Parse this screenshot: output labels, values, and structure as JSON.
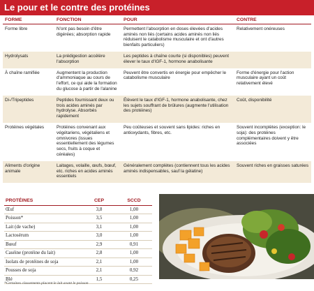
{
  "title": "Le pour et le contre des protéines",
  "table": {
    "headers": [
      "FORME",
      "FONCTION",
      "POUR",
      "CONTRE"
    ],
    "rows": [
      [
        "Forme libre",
        "N'ont pas besoin d'être digérées; absorption rapide",
        "Permettent l'absorption en doses élevées d'acides aminés non liés (certains acides aminés non liés réduisent le catabolisme musculaire et ont d'autres bienfaits particuliers)",
        "Relativement onéreuses"
      ],
      [
        "Hydrolysats",
        "La prédigestion accélère l'absorption",
        "Les peptides à chaîne courte (si disponibles) peuvent élever le taux d'IGF-1, hormone anabolisante",
        null
      ],
      [
        "À chaîne ramifiée",
        "Augmentent la production d'ammoniaque au cours de l'effort, ce qui aide la formation du glucose à partir de l'alanine",
        "Peuvent être convertis en énergie pour empêcher le catabolisme musculaire",
        "Forme d'énergie pour l'action musculaire ayant un coût relativement élevé"
      ],
      [
        "Di-/Tripeptides",
        "Peptides fournissant deux ou trois acides aminés par hydrolyse. Absorbés rapidement",
        "Élèvent le taux d'IGF-1, hormone anabolisante, chez les sujets souffrant de brûlures (augmente l'utilisation des protéines)",
        "Coût, disponibilité"
      ],
      [
        "Protéines végétales",
        "Protéines convenant aux végétariens, végétaliens et omnivores (issues essentiellement des légumes secs, fruits à coque et céréales)",
        "Peu coûteuses et souvent sans lipides: riches en antioxydants, fibres, etc.",
        "Souvent incomplètes (exception: le soja): des protéines complémentaires doivent y être associées"
      ],
      [
        "Aliments d'origine animale",
        "Laitages, volaille, œufs, bœuf, etc. riches en acides aminés essentiels",
        "Généralement complètes (contiennent tous les acides aminés indispensables, sauf la gélatine)",
        "Souvent riches en graisses saturées"
      ]
    ]
  },
  "scores": {
    "headers": [
      "PROTÉINES",
      "CEP",
      "SCCD"
    ],
    "rows": [
      [
        "Œuf",
        "3,8",
        "1,00"
      ],
      [
        "Poisson*",
        "3,5",
        "1,00"
      ],
      [
        "Lait (de vache)",
        "3,1",
        "1,00"
      ],
      [
        "Lactosérum",
        "3,0",
        "1,00"
      ],
      [
        "Bœuf",
        "2,9",
        "0,91"
      ],
      [
        "Caséine (protéine du lait)",
        "2,8",
        "1,00"
      ],
      [
        "Isolats de protéines de soja",
        "2,1",
        "1,00"
      ],
      [
        "Pousses de soja",
        "2,1",
        "0,92"
      ],
      [
        "Blé",
        "1,5",
        "0,25"
      ]
    ]
  },
  "footnote": "*Certaines classements placent le lait avant le poisson"
}
